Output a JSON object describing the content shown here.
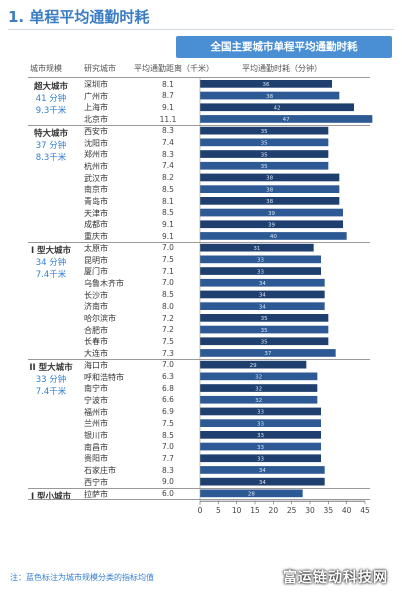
{
  "heading": "1. 单程平均通勤时耗",
  "chart_data": {
    "type": "bar",
    "orientation": "horizontal",
    "title": "全国主要城市单程平均通勤时耗",
    "column_headers": {
      "class": "城市规模",
      "city": "研究城市",
      "distance": "平均通勤距离（千米）",
      "time": "平均通勤时耗（分钟）"
    },
    "xlim": [
      0,
      45
    ],
    "x_ticks": [
      "0",
      "5",
      "10",
      "15",
      "20",
      "25",
      "30",
      "35",
      "40",
      "45"
    ],
    "groups": [
      {
        "name": "超大城市",
        "avg_time": "41 分钟",
        "avg_dist": "9.3千米",
        "cities": [
          {
            "city": "深圳市",
            "distance": "8.1",
            "time": 36
          },
          {
            "city": "广州市",
            "distance": "8.7",
            "time": 38
          },
          {
            "city": "上海市",
            "distance": "9.1",
            "time": 42
          },
          {
            "city": "北京市",
            "distance": "11.1",
            "time": 47
          }
        ]
      },
      {
        "name": "特大城市",
        "avg_time": "37 分钟",
        "avg_dist": "8.3千米",
        "cities": [
          {
            "city": "西安市",
            "distance": "8.3",
            "time": 35
          },
          {
            "city": "沈阳市",
            "distance": "7.4",
            "time": 35
          },
          {
            "city": "郑州市",
            "distance": "8.3",
            "time": 35
          },
          {
            "city": "杭州市",
            "distance": "7.4",
            "time": 35
          },
          {
            "city": "武汉市",
            "distance": "8.2",
            "time": 38
          },
          {
            "city": "南京市",
            "distance": "8.5",
            "time": 38
          },
          {
            "city": "青岛市",
            "distance": "8.1",
            "time": 38
          },
          {
            "city": "天津市",
            "distance": "8.5",
            "time": 39
          },
          {
            "city": "成都市",
            "distance": "9.1",
            "time": 39
          },
          {
            "city": "重庆市",
            "distance": "9.1",
            "time": 40
          }
        ]
      },
      {
        "name": "I 型大城市",
        "avg_time": "34 分钟",
        "avg_dist": "7.4千米",
        "cities": [
          {
            "city": "太原市",
            "distance": "7.0",
            "time": 31
          },
          {
            "city": "昆明市",
            "distance": "7.5",
            "time": 33
          },
          {
            "city": "厦门市",
            "distance": "7.1",
            "time": 33
          },
          {
            "city": "乌鲁木齐市",
            "distance": "7.0",
            "time": 34
          },
          {
            "city": "长沙市",
            "distance": "8.5",
            "time": 34
          },
          {
            "city": "济南市",
            "distance": "8.0",
            "time": 34
          },
          {
            "city": "哈尔滨市",
            "distance": "7.2",
            "time": 35
          },
          {
            "city": "合肥市",
            "distance": "7.2",
            "time": 35
          },
          {
            "city": "长春市",
            "distance": "7.5",
            "time": 35
          },
          {
            "city": "大连市",
            "distance": "7.3",
            "time": 37
          }
        ]
      },
      {
        "name": "II 型大城市",
        "avg_time": "33 分钟",
        "avg_dist": "7.4千米",
        "cities": [
          {
            "city": "海口市",
            "distance": "7.0",
            "time": 29
          },
          {
            "city": "呼和浩特市",
            "distance": "6.3",
            "time": 32
          },
          {
            "city": "南宁市",
            "distance": "6.8",
            "time": 32
          },
          {
            "city": "宁波市",
            "distance": "6.6",
            "time": 32
          },
          {
            "city": "福州市",
            "distance": "6.9",
            "time": 33
          },
          {
            "city": "兰州市",
            "distance": "7.5",
            "time": 33
          },
          {
            "city": "银川市",
            "distance": "8.5",
            "time": 33
          },
          {
            "city": "南昌市",
            "distance": "7.0",
            "time": 33
          },
          {
            "city": "贵阳市",
            "distance": "7.7",
            "time": 33
          },
          {
            "city": "石家庄市",
            "distance": "8.3",
            "time": 34
          },
          {
            "city": "西宁市",
            "distance": "9.0",
            "time": 34
          }
        ]
      },
      {
        "name": "I 型小城市",
        "avg_time": "",
        "avg_dist": "",
        "cities": [
          {
            "city": "拉萨市",
            "distance": "6.0",
            "time": 28
          }
        ]
      }
    ],
    "bar_color": "#1f3f6e",
    "bar_color_light": "#2d5a94"
  },
  "note": "注：蓝色标注为城市规模分类的指标均值",
  "watermark": "富运链动科技网"
}
